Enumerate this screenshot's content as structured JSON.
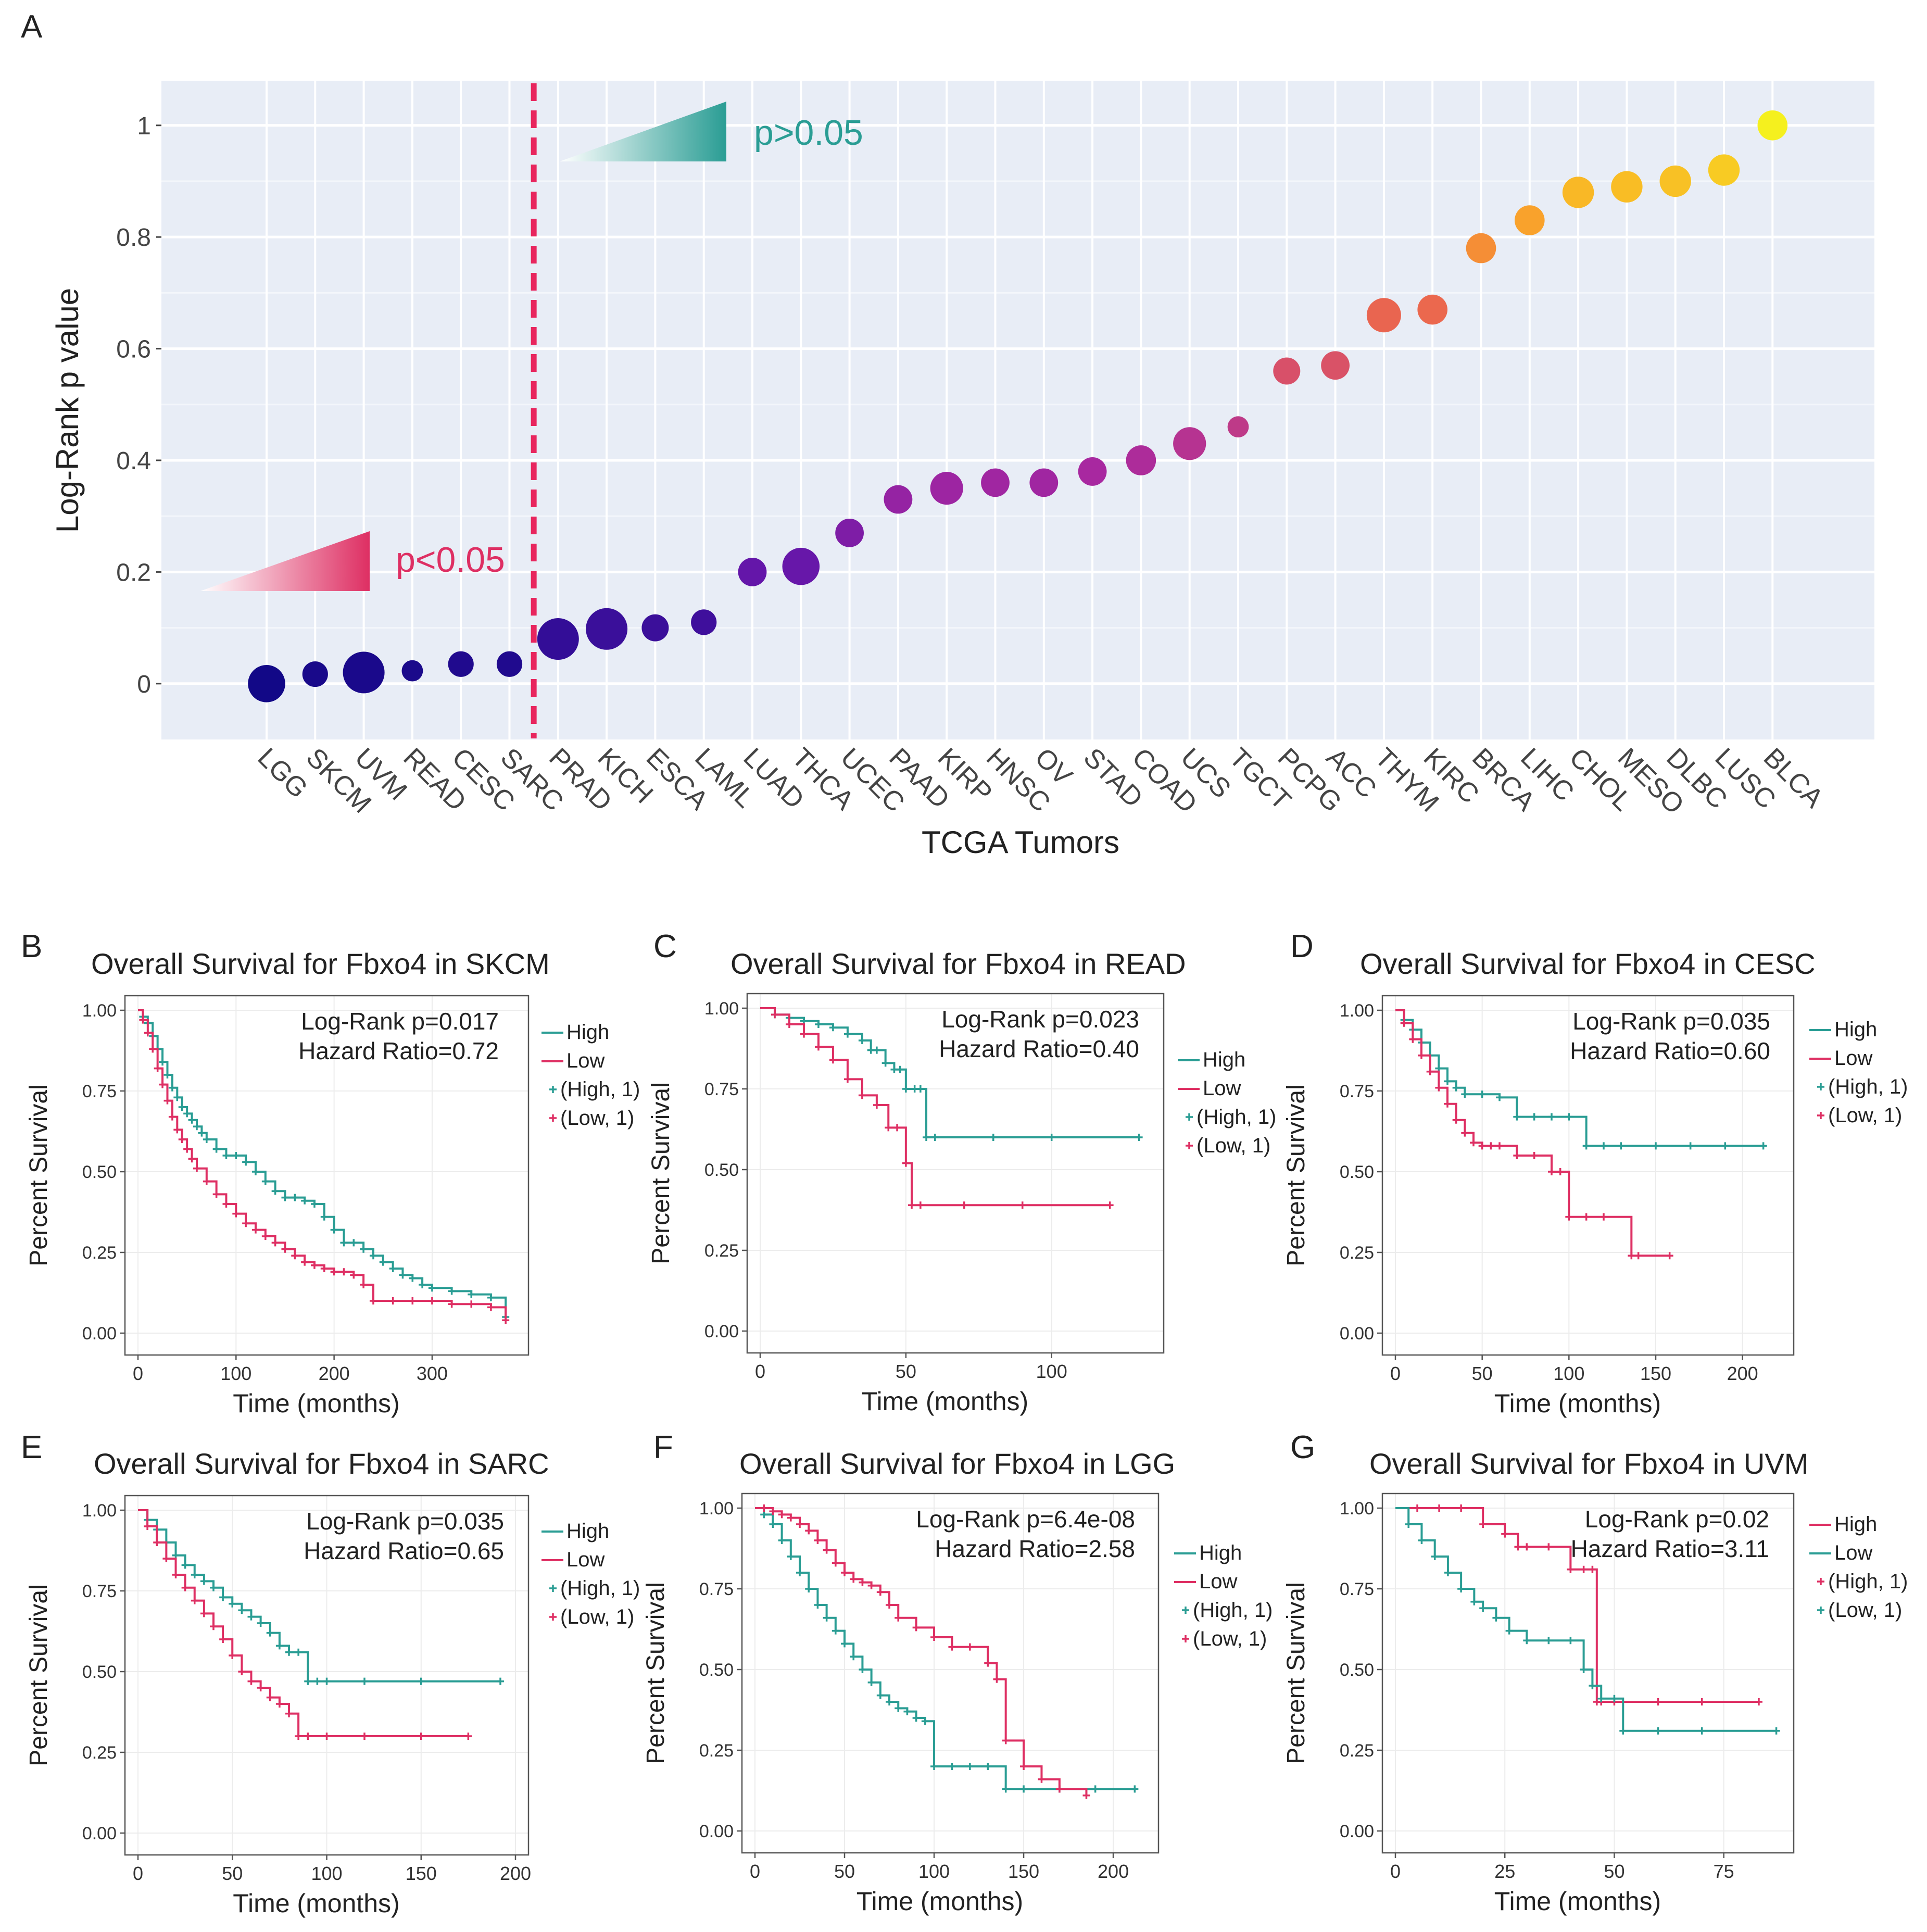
{
  "panels": {
    "a": "A",
    "b": "B",
    "c": "C",
    "d": "D",
    "e": "E",
    "f": "F",
    "g": "G"
  },
  "colors": {
    "teal": "#2a9d94",
    "pink": "#de2f63",
    "panel_bg": "#e8edf6",
    "cutoff": "#e8265e"
  },
  "chart_data": [
    {
      "type": "scatter",
      "id": "A",
      "title": "",
      "xlabel": "TCGA Tumors",
      "ylabel": "Log-Rank p value",
      "ylim": [
        -0.1,
        1.08
      ],
      "yticks": [
        0,
        0.2,
        0.4,
        0.6,
        0.8,
        1
      ],
      "ytick_labels": [
        "0",
        "0.2",
        "0.4",
        "0.6",
        "0.8",
        "1"
      ],
      "categories": [
        "LGG",
        "SKCM",
        "UVM",
        "READ",
        "CESC",
        "SARC",
        "PRAD",
        "KICH",
        "ESCA",
        "LAML",
        "LUAD",
        "THCA",
        "UCEC",
        "PAAD",
        "KIRP",
        "HNSC",
        "OV",
        "STAD",
        "COAD",
        "UCS",
        "TGCT",
        "PCPG",
        "ACC",
        "THYM",
        "KIRC",
        "BRCA",
        "LIHC",
        "CHOL",
        "MESO",
        "DLBC",
        "LUSC",
        "BLCA"
      ],
      "values": [
        0.0,
        0.017,
        0.02,
        0.023,
        0.035,
        0.035,
        0.08,
        0.098,
        0.1,
        0.11,
        0.2,
        0.21,
        0.27,
        0.33,
        0.35,
        0.36,
        0.36,
        0.38,
        0.4,
        0.43,
        0.46,
        0.56,
        0.57,
        0.66,
        0.67,
        0.78,
        0.83,
        0.88,
        0.89,
        0.9,
        0.92,
        1.0
      ],
      "sizes": [
        0.85,
        0.45,
        1.0,
        0.3,
        0.45,
        0.45,
        1.0,
        1.0,
        0.5,
        0.45,
        0.55,
        0.85,
        0.55,
        0.55,
        0.7,
        0.55,
        0.55,
        0.55,
        0.6,
        0.7,
        0.3,
        0.5,
        0.55,
        0.75,
        0.6,
        0.6,
        0.6,
        0.65,
        0.65,
        0.65,
        0.65,
        0.6
      ],
      "cutoff_after": "SARC",
      "annotations": {
        "left": "p<0.05",
        "right": "p>0.05"
      }
    },
    {
      "type": "line",
      "id": "B",
      "title": "Overall Survival for Fbxo4 in SKCM",
      "xlabel": "Time (months)",
      "ylabel": "Percent Survival",
      "xlim": [
        0,
        385
      ],
      "xticks": [
        0,
        100,
        200,
        300
      ],
      "ylim": [
        0,
        1
      ],
      "yticks": [
        0,
        0.25,
        0.5,
        0.75,
        1
      ],
      "ytick_labels": [
        "0.00",
        "0.25",
        "0.50",
        "0.75",
        "1.00"
      ],
      "stats": [
        "Log-Rank p=0.017",
        "Hazard Ratio=0.72"
      ],
      "legend": [
        "High",
        "Low",
        "(High, 1)",
        "(Low, 1)"
      ],
      "legend_colors": [
        "teal",
        "pink",
        "teal",
        "pink"
      ],
      "series": [
        {
          "name": "High",
          "color": "teal",
          "x": [
            0,
            5,
            10,
            15,
            20,
            25,
            30,
            35,
            40,
            45,
            50,
            55,
            60,
            65,
            70,
            80,
            90,
            100,
            110,
            120,
            130,
            140,
            150,
            160,
            170,
            180,
            190,
            200,
            210,
            220,
            230,
            240,
            250,
            260,
            270,
            280,
            290,
            300,
            320,
            340,
            360,
            375
          ],
          "y": [
            1.0,
            0.98,
            0.96,
            0.92,
            0.88,
            0.84,
            0.8,
            0.76,
            0.73,
            0.7,
            0.68,
            0.66,
            0.64,
            0.62,
            0.6,
            0.57,
            0.55,
            0.55,
            0.53,
            0.5,
            0.47,
            0.44,
            0.42,
            0.42,
            0.41,
            0.4,
            0.36,
            0.32,
            0.28,
            0.28,
            0.26,
            0.24,
            0.22,
            0.2,
            0.18,
            0.17,
            0.15,
            0.14,
            0.13,
            0.12,
            0.11,
            0.05
          ]
        },
        {
          "name": "Low",
          "color": "pink",
          "x": [
            0,
            5,
            10,
            15,
            20,
            25,
            30,
            35,
            40,
            45,
            50,
            55,
            60,
            70,
            80,
            90,
            100,
            110,
            120,
            130,
            140,
            150,
            160,
            170,
            180,
            190,
            200,
            210,
            220,
            230,
            240,
            260,
            280,
            300,
            320,
            340,
            360,
            375
          ],
          "y": [
            1.0,
            0.97,
            0.93,
            0.88,
            0.82,
            0.77,
            0.72,
            0.67,
            0.63,
            0.6,
            0.57,
            0.54,
            0.51,
            0.47,
            0.43,
            0.4,
            0.37,
            0.34,
            0.32,
            0.3,
            0.28,
            0.26,
            0.24,
            0.22,
            0.21,
            0.2,
            0.19,
            0.19,
            0.18,
            0.15,
            0.1,
            0.1,
            0.1,
            0.1,
            0.09,
            0.09,
            0.08,
            0.04
          ]
        }
      ]
    },
    {
      "type": "line",
      "id": "C",
      "title": "Overall Survival for Fbxo4 in READ",
      "xlabel": "Time (months)",
      "ylabel": "Percent Survival",
      "xlim": [
        0,
        134
      ],
      "xticks": [
        0,
        50,
        100
      ],
      "ylim": [
        0,
        1
      ],
      "yticks": [
        0,
        0.25,
        0.5,
        0.75,
        1
      ],
      "ytick_labels": [
        "0.00",
        "0.25",
        "0.50",
        "0.75",
        "1.00"
      ],
      "stats": [
        "Log-Rank p=0.023",
        "Hazard Ratio=0.40"
      ],
      "legend": [
        "High",
        "Low",
        "(High, 1)",
        "(Low, 1)"
      ],
      "legend_colors": [
        "teal",
        "pink",
        "teal",
        "pink"
      ],
      "series": [
        {
          "name": "High",
          "color": "teal",
          "x": [
            0,
            5,
            10,
            15,
            20,
            25,
            30,
            35,
            38,
            40,
            43,
            46,
            48,
            50,
            53,
            55,
            57,
            60,
            80,
            100,
            130
          ],
          "y": [
            1.0,
            0.98,
            0.97,
            0.96,
            0.95,
            0.94,
            0.92,
            0.9,
            0.87,
            0.87,
            0.83,
            0.81,
            0.81,
            0.75,
            0.75,
            0.75,
            0.6,
            0.6,
            0.6,
            0.6,
            0.6
          ]
        },
        {
          "name": "Low",
          "color": "pink",
          "x": [
            0,
            5,
            10,
            15,
            20,
            25,
            30,
            35,
            40,
            44,
            47,
            50,
            52,
            55,
            70,
            90,
            120
          ],
          "y": [
            1.0,
            0.98,
            0.95,
            0.92,
            0.88,
            0.84,
            0.78,
            0.73,
            0.7,
            0.63,
            0.63,
            0.52,
            0.39,
            0.39,
            0.39,
            0.39,
            0.39
          ]
        }
      ]
    },
    {
      "type": "line",
      "id": "D",
      "title": "Overall Survival for Fbxo4 in CESC",
      "xlabel": "Time (months)",
      "ylabel": "Percent Survival",
      "xlim": [
        0,
        222
      ],
      "xticks": [
        0,
        50,
        100,
        150,
        200
      ],
      "ylim": [
        0,
        1
      ],
      "yticks": [
        0,
        0.25,
        0.5,
        0.75,
        1
      ],
      "ytick_labels": [
        "0.00",
        "0.25",
        "0.50",
        "0.75",
        "1.00"
      ],
      "stats": [
        "Log-Rank p=0.035",
        "Hazard Ratio=0.60"
      ],
      "legend": [
        "High",
        "Low",
        "(High, 1)",
        "(Low, 1)"
      ],
      "legend_colors": [
        "teal",
        "pink",
        "teal",
        "pink"
      ],
      "series": [
        {
          "name": "High",
          "color": "teal",
          "x": [
            0,
            5,
            10,
            15,
            20,
            25,
            30,
            35,
            40,
            50,
            60,
            70,
            80,
            90,
            100,
            110,
            120,
            130,
            150,
            170,
            190,
            212
          ],
          "y": [
            1.0,
            0.97,
            0.94,
            0.9,
            0.86,
            0.82,
            0.78,
            0.76,
            0.74,
            0.74,
            0.73,
            0.67,
            0.67,
            0.67,
            0.67,
            0.58,
            0.58,
            0.58,
            0.58,
            0.58,
            0.58,
            0.58
          ]
        },
        {
          "name": "Low",
          "color": "pink",
          "x": [
            0,
            5,
            10,
            15,
            20,
            25,
            30,
            35,
            40,
            45,
            50,
            55,
            60,
            70,
            80,
            90,
            95,
            100,
            110,
            120,
            136,
            140,
            158
          ],
          "y": [
            1.0,
            0.96,
            0.91,
            0.86,
            0.81,
            0.76,
            0.71,
            0.66,
            0.62,
            0.59,
            0.58,
            0.58,
            0.58,
            0.55,
            0.55,
            0.5,
            0.5,
            0.36,
            0.36,
            0.36,
            0.24,
            0.24,
            0.24
          ]
        }
      ]
    },
    {
      "type": "line",
      "id": "E",
      "title": "Overall Survival for Fbxo4 in SARC",
      "xlabel": "Time (months)",
      "ylabel": "Percent Survival",
      "xlim": [
        0,
        200
      ],
      "xticks": [
        0,
        50,
        100,
        150,
        200
      ],
      "ylim": [
        0,
        1
      ],
      "yticks": [
        0,
        0.25,
        0.5,
        0.75,
        1
      ],
      "ytick_labels": [
        "0.00",
        "0.25",
        "0.50",
        "0.75",
        "1.00"
      ],
      "stats": [
        "Log-Rank p=0.035",
        "Hazard Ratio=0.65"
      ],
      "legend": [
        "High",
        "Low",
        "(High, 1)",
        "(Low, 1)"
      ],
      "legend_colors": [
        "teal",
        "pink",
        "teal",
        "pink"
      ],
      "series": [
        {
          "name": "High",
          "color": "teal",
          "x": [
            0,
            5,
            10,
            15,
            20,
            25,
            30,
            35,
            40,
            45,
            50,
            55,
            60,
            65,
            70,
            75,
            80,
            85,
            90,
            95,
            100,
            120,
            150,
            192
          ],
          "y": [
            1.0,
            0.97,
            0.94,
            0.9,
            0.86,
            0.83,
            0.8,
            0.78,
            0.76,
            0.73,
            0.71,
            0.69,
            0.67,
            0.65,
            0.62,
            0.58,
            0.56,
            0.56,
            0.47,
            0.47,
            0.47,
            0.47,
            0.47,
            0.47
          ]
        },
        {
          "name": "Low",
          "color": "pink",
          "x": [
            0,
            5,
            10,
            15,
            20,
            25,
            30,
            35,
            40,
            45,
            50,
            55,
            60,
            65,
            70,
            75,
            80,
            85,
            90,
            100,
            120,
            150,
            175
          ],
          "y": [
            1.0,
            0.95,
            0.9,
            0.85,
            0.8,
            0.76,
            0.72,
            0.68,
            0.64,
            0.6,
            0.55,
            0.5,
            0.47,
            0.45,
            0.42,
            0.4,
            0.37,
            0.3,
            0.3,
            0.3,
            0.3,
            0.3,
            0.3
          ]
        }
      ]
    },
    {
      "type": "line",
      "id": "F",
      "title": "Overall Survival for Fbxo4 in LGG",
      "xlabel": "Time (months)",
      "ylabel": "Percent Survival",
      "xlim": [
        0,
        218
      ],
      "xticks": [
        0,
        50,
        100,
        150,
        200
      ],
      "ylim": [
        0,
        1
      ],
      "yticks": [
        0,
        0.25,
        0.5,
        0.75,
        1
      ],
      "ytick_labels": [
        "0.00",
        "0.25",
        "0.50",
        "0.75",
        "1.00"
      ],
      "stats": [
        "Log-Rank p=6.4e-08",
        "Hazard Ratio=2.58"
      ],
      "legend": [
        "High",
        "Low",
        "(High, 1)",
        "(Low, 1)"
      ],
      "legend_colors": [
        "teal",
        "pink",
        "teal",
        "pink"
      ],
      "series": [
        {
          "name": "High",
          "color": "teal",
          "x": [
            0,
            5,
            10,
            15,
            20,
            25,
            30,
            35,
            40,
            45,
            50,
            55,
            60,
            65,
            70,
            75,
            80,
            85,
            90,
            95,
            100,
            110,
            120,
            130,
            140,
            150,
            170,
            190,
            212
          ],
          "y": [
            1.0,
            0.98,
            0.95,
            0.9,
            0.85,
            0.8,
            0.75,
            0.7,
            0.66,
            0.62,
            0.58,
            0.54,
            0.5,
            0.46,
            0.42,
            0.4,
            0.38,
            0.37,
            0.35,
            0.34,
            0.2,
            0.2,
            0.2,
            0.2,
            0.13,
            0.13,
            0.13,
            0.13,
            0.13
          ]
        },
        {
          "name": "Low",
          "color": "pink",
          "x": [
            0,
            5,
            10,
            15,
            20,
            25,
            30,
            35,
            40,
            45,
            50,
            55,
            60,
            65,
            70,
            75,
            80,
            90,
            100,
            110,
            120,
            130,
            135,
            140,
            150,
            160,
            170,
            185
          ],
          "y": [
            1.0,
            1.0,
            0.99,
            0.98,
            0.97,
            0.95,
            0.93,
            0.9,
            0.87,
            0.83,
            0.8,
            0.78,
            0.77,
            0.76,
            0.74,
            0.7,
            0.66,
            0.63,
            0.6,
            0.57,
            0.57,
            0.52,
            0.47,
            0.28,
            0.2,
            0.16,
            0.13,
            0.11
          ]
        }
      ]
    },
    {
      "type": "line",
      "id": "G",
      "title": "Overall Survival for Fbxo4 in UVM",
      "xlabel": "Time (months)",
      "ylabel": "Percent Survival",
      "xlim": [
        0,
        88
      ],
      "xticks": [
        0,
        25,
        50,
        75
      ],
      "ylim": [
        0,
        1
      ],
      "yticks": [
        0,
        0.25,
        0.5,
        0.75,
        1
      ],
      "ytick_labels": [
        "0.00",
        "0.25",
        "0.50",
        "0.75",
        "1.00"
      ],
      "stats": [
        "Log-Rank p=0.02",
        "Hazard Ratio=3.11"
      ],
      "legend": [
        "High",
        "Low",
        "(High, 1)",
        "(Low, 1)"
      ],
      "legend_colors": [
        "pink",
        "teal",
        "pink",
        "teal"
      ],
      "series": [
        {
          "name": "High",
          "color": "pink",
          "x": [
            0,
            5,
            10,
            15,
            20,
            25,
            28,
            30,
            35,
            40,
            43,
            45,
            46,
            47,
            50,
            60,
            70,
            83
          ],
          "y": [
            1.0,
            1.0,
            1.0,
            1.0,
            0.95,
            0.92,
            0.88,
            0.88,
            0.88,
            0.81,
            0.81,
            0.81,
            0.4,
            0.4,
            0.4,
            0.4,
            0.4,
            0.4
          ]
        },
        {
          "name": "Low",
          "color": "teal",
          "x": [
            0,
            3,
            6,
            9,
            12,
            15,
            18,
            20,
            23,
            26,
            30,
            35,
            40,
            43,
            45,
            47,
            50,
            52,
            60,
            70,
            87
          ],
          "y": [
            1.0,
            0.95,
            0.9,
            0.85,
            0.8,
            0.75,
            0.71,
            0.69,
            0.66,
            0.62,
            0.59,
            0.59,
            0.59,
            0.5,
            0.45,
            0.41,
            0.41,
            0.31,
            0.31,
            0.31,
            0.31
          ]
        }
      ]
    }
  ]
}
